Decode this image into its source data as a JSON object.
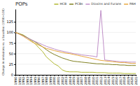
{
  "chart_data": {
    "type": "line",
    "title": "POPs",
    "ylabel": "Change in emissions vs. a baseline (1990=100)",
    "x": [
      1990,
      1991,
      1992,
      1993,
      1994,
      1995,
      1996,
      1997,
      1998,
      1999,
      2000,
      2001,
      2002,
      2003,
      2004,
      2005,
      2006,
      2007,
      2008,
      2009,
      2010,
      2011,
      2012,
      2013,
      2014,
      2015,
      2016,
      2017,
      2018,
      2019,
      2020,
      2021
    ],
    "series": [
      {
        "name": "HCB",
        "color": "#b0b830",
        "values": [
          100,
          97,
          94,
          88,
          81,
          74,
          64,
          55,
          42,
          34,
          26,
          21,
          12,
          8,
          7,
          7,
          7,
          6,
          6,
          6,
          6,
          5,
          5,
          5,
          4,
          4,
          4,
          4,
          3,
          3,
          3,
          3
        ]
      },
      {
        "name": "PCBs",
        "color": "#808020",
        "values": [
          100,
          97,
          93,
          88,
          83,
          78,
          72,
          66,
          59,
          53,
          48,
          44,
          40,
          37,
          34,
          32,
          31,
          30,
          29,
          28,
          27,
          26,
          26,
          25,
          25,
          24,
          24,
          23,
          23,
          22,
          22,
          22
        ]
      },
      {
        "name": "Dioxins and Furans",
        "color": "#c090c8",
        "values": [
          100,
          96,
          92,
          87,
          83,
          79,
          75,
          71,
          67,
          64,
          61,
          58,
          56,
          54,
          52,
          50,
          49,
          47,
          46,
          45,
          44,
          42,
          152,
          35,
          34,
          33,
          32,
          31,
          31,
          30,
          30,
          30
        ]
      },
      {
        "name": "PAH",
        "color": "#e8a840",
        "values": [
          100,
          96,
          91,
          85,
          79,
          74,
          70,
          66,
          62,
          60,
          57,
          55,
          53,
          51,
          50,
          48,
          46,
          44,
          42,
          40,
          38,
          36,
          34,
          33,
          32,
          31,
          30,
          29,
          29,
          28,
          27,
          27
        ]
      }
    ],
    "xlim": [
      1990,
      2021
    ],
    "xticks": [
      1990,
      1991,
      1992,
      1993,
      1994,
      1995,
      1996,
      1997,
      1998,
      1999,
      2000,
      2001,
      2002,
      2003,
      2004,
      2005,
      2006,
      2007,
      2008,
      2009,
      2010,
      2011,
      2012,
      2013,
      2014,
      2015,
      2016,
      2017,
      2018,
      2019,
      2020,
      2021
    ],
    "ylim": [
      0,
      155
    ],
    "yticks": [
      0,
      25,
      50,
      75,
      100,
      125
    ],
    "grid": true,
    "legend": "upper right"
  }
}
